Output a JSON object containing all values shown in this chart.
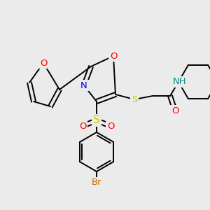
{
  "bg_color": "#ebebeb",
  "colors": {
    "C": "#000000",
    "N": "#0000ee",
    "O": "#ff0000",
    "S": "#cccc00",
    "Br": "#cc6600",
    "H_col": "#008888",
    "bond": "#000000"
  },
  "lw": 1.4,
  "fs": 9.5
}
